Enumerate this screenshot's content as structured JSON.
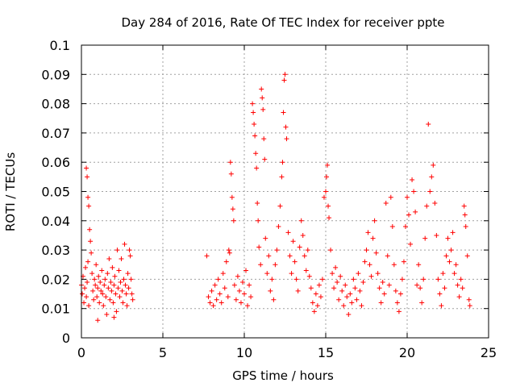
{
  "chart_data": {
    "type": "scatter",
    "title": "Day 284 of 2016, Rate Of TEC Index for receiver ppte",
    "xlabel": "GPS time / hours",
    "ylabel": "ROTI / TECUs",
    "xlim": [
      0,
      25
    ],
    "ylim": [
      0,
      0.1
    ],
    "xticks": [
      0,
      5,
      10,
      15,
      20,
      25
    ],
    "xtick_labels": [
      "0",
      "5",
      "10",
      "15",
      "20",
      "25"
    ],
    "yticks": [
      0,
      0.01,
      0.02,
      0.03,
      0.04,
      0.05,
      0.06,
      0.07,
      0.08,
      0.09,
      0.1
    ],
    "ytick_labels": [
      "0",
      "0.01",
      "0.02",
      "0.03",
      "0.04",
      "0.05",
      "0.06",
      "0.07",
      "0.08",
      "0.09",
      "0.1"
    ],
    "grid": true,
    "marker": "+",
    "color": "#ff0000",
    "series": [
      {
        "name": "ROTI",
        "points": [
          [
            0.0,
            0.018
          ],
          [
            0.05,
            0.015
          ],
          [
            0.1,
            0.021
          ],
          [
            0.15,
            0.012
          ],
          [
            0.2,
            0.017
          ],
          [
            0.25,
            0.024
          ],
          [
            0.3,
            0.014
          ],
          [
            0.35,
            0.019
          ],
          [
            0.4,
            0.026
          ],
          [
            0.45,
            0.011
          ],
          [
            0.3,
            0.058
          ],
          [
            0.35,
            0.055
          ],
          [
            0.4,
            0.048
          ],
          [
            0.45,
            0.045
          ],
          [
            0.5,
            0.037
          ],
          [
            0.55,
            0.033
          ],
          [
            0.6,
            0.029
          ],
          [
            0.65,
            0.022
          ],
          [
            0.7,
            0.016
          ],
          [
            0.75,
            0.013
          ],
          [
            0.8,
            0.02
          ],
          [
            0.85,
            0.018
          ],
          [
            0.9,
            0.025
          ],
          [
            0.95,
            0.014
          ],
          [
            1.0,
            0.017
          ],
          [
            1.05,
            0.021
          ],
          [
            1.1,
            0.012
          ],
          [
            1.15,
            0.019
          ],
          [
            1.2,
            0.016
          ],
          [
            1.25,
            0.023
          ],
          [
            1.3,
            0.015
          ],
          [
            1.35,
            0.011
          ],
          [
            1.4,
            0.018
          ],
          [
            1.45,
            0.02
          ],
          [
            1.5,
            0.014
          ],
          [
            1.55,
            0.008
          ],
          [
            1.6,
            0.022
          ],
          [
            1.65,
            0.017
          ],
          [
            1.7,
            0.027
          ],
          [
            1.75,
            0.013
          ],
          [
            1.8,
            0.019
          ],
          [
            1.85,
            0.016
          ],
          [
            1.9,
            0.024
          ],
          [
            1.95,
            0.012
          ],
          [
            2.0,
            0.018
          ],
          [
            2.05,
            0.021
          ],
          [
            2.1,
            0.015
          ],
          [
            2.15,
            0.009
          ],
          [
            2.2,
            0.03
          ],
          [
            2.25,
            0.017
          ],
          [
            2.3,
            0.023
          ],
          [
            2.35,
            0.014
          ],
          [
            2.4,
            0.019
          ],
          [
            2.45,
            0.027
          ],
          [
            2.5,
            0.016
          ],
          [
            2.55,
            0.012
          ],
          [
            2.6,
            0.02
          ],
          [
            2.65,
            0.032
          ],
          [
            2.7,
            0.018
          ],
          [
            2.75,
            0.015
          ],
          [
            2.8,
            0.011
          ],
          [
            2.85,
            0.022
          ],
          [
            2.9,
            0.017
          ],
          [
            2.95,
            0.03
          ],
          [
            3.0,
            0.028
          ],
          [
            3.05,
            0.02
          ],
          [
            3.1,
            0.015
          ],
          [
            3.15,
            0.013
          ],
          [
            1.0,
            0.006
          ],
          [
            2.0,
            0.007
          ],
          [
            7.7,
            0.028
          ],
          [
            7.8,
            0.014
          ],
          [
            7.9,
            0.012
          ],
          [
            8.0,
            0.016
          ],
          [
            8.1,
            0.011
          ],
          [
            8.2,
            0.018
          ],
          [
            8.3,
            0.013
          ],
          [
            8.4,
            0.02
          ],
          [
            8.5,
            0.015
          ],
          [
            8.6,
            0.012
          ],
          [
            8.7,
            0.022
          ],
          [
            8.8,
            0.017
          ],
          [
            8.9,
            0.026
          ],
          [
            9.0,
            0.014
          ],
          [
            9.05,
            0.03
          ],
          [
            9.1,
            0.029
          ],
          [
            9.15,
            0.06
          ],
          [
            9.2,
            0.056
          ],
          [
            9.25,
            0.048
          ],
          [
            9.3,
            0.044
          ],
          [
            9.35,
            0.04
          ],
          [
            9.4,
            0.018
          ],
          [
            9.5,
            0.013
          ],
          [
            9.6,
            0.021
          ],
          [
            9.7,
            0.016
          ],
          [
            9.8,
            0.012
          ],
          [
            9.9,
            0.019
          ],
          [
            10.0,
            0.015
          ],
          [
            10.1,
            0.023
          ],
          [
            10.2,
            0.011
          ],
          [
            10.3,
            0.018
          ],
          [
            10.4,
            0.014
          ],
          [
            10.5,
            0.08
          ],
          [
            10.55,
            0.077
          ],
          [
            10.6,
            0.073
          ],
          [
            10.65,
            0.069
          ],
          [
            10.7,
            0.063
          ],
          [
            10.75,
            0.058
          ],
          [
            10.8,
            0.046
          ],
          [
            10.85,
            0.04
          ],
          [
            10.9,
            0.031
          ],
          [
            11.0,
            0.025
          ],
          [
            11.05,
            0.085
          ],
          [
            11.1,
            0.082
          ],
          [
            11.15,
            0.078
          ],
          [
            11.2,
            0.068
          ],
          [
            11.25,
            0.061
          ],
          [
            11.3,
            0.034
          ],
          [
            11.4,
            0.022
          ],
          [
            11.5,
            0.028
          ],
          [
            11.6,
            0.016
          ],
          [
            11.7,
            0.02
          ],
          [
            11.8,
            0.013
          ],
          [
            11.9,
            0.025
          ],
          [
            12.0,
            0.03
          ],
          [
            12.1,
            0.038
          ],
          [
            12.2,
            0.045
          ],
          [
            12.3,
            0.055
          ],
          [
            12.35,
            0.06
          ],
          [
            12.4,
            0.077
          ],
          [
            12.45,
            0.088
          ],
          [
            12.5,
            0.09
          ],
          [
            12.55,
            0.072
          ],
          [
            12.6,
            0.068
          ],
          [
            12.7,
            0.036
          ],
          [
            12.8,
            0.028
          ],
          [
            12.9,
            0.022
          ],
          [
            13.0,
            0.033
          ],
          [
            13.1,
            0.026
          ],
          [
            13.2,
            0.02
          ],
          [
            13.3,
            0.016
          ],
          [
            13.4,
            0.031
          ],
          [
            13.5,
            0.04
          ],
          [
            13.6,
            0.035
          ],
          [
            13.7,
            0.028
          ],
          [
            13.8,
            0.023
          ],
          [
            13.9,
            0.03
          ],
          [
            14.0,
            0.021
          ],
          [
            14.1,
            0.017
          ],
          [
            14.2,
            0.012
          ],
          [
            14.3,
            0.009
          ],
          [
            14.4,
            0.015
          ],
          [
            14.5,
            0.011
          ],
          [
            14.6,
            0.018
          ],
          [
            14.7,
            0.014
          ],
          [
            14.8,
            0.02
          ],
          [
            14.9,
            0.048
          ],
          [
            15.0,
            0.05
          ],
          [
            15.05,
            0.055
          ],
          [
            15.1,
            0.059
          ],
          [
            15.15,
            0.045
          ],
          [
            15.2,
            0.041
          ],
          [
            15.3,
            0.03
          ],
          [
            15.4,
            0.022
          ],
          [
            15.5,
            0.017
          ],
          [
            15.6,
            0.024
          ],
          [
            15.7,
            0.019
          ],
          [
            15.8,
            0.013
          ],
          [
            15.9,
            0.021
          ],
          [
            16.0,
            0.016
          ],
          [
            16.1,
            0.011
          ],
          [
            16.2,
            0.018
          ],
          [
            16.3,
            0.014
          ],
          [
            16.4,
            0.008
          ],
          [
            16.5,
            0.015
          ],
          [
            16.6,
            0.012
          ],
          [
            16.7,
            0.02
          ],
          [
            16.8,
            0.017
          ],
          [
            16.9,
            0.013
          ],
          [
            17.0,
            0.022
          ],
          [
            17.1,
            0.016
          ],
          [
            17.2,
            0.011
          ],
          [
            17.3,
            0.019
          ],
          [
            17.4,
            0.026
          ],
          [
            17.5,
            0.03
          ],
          [
            17.6,
            0.036
          ],
          [
            17.7,
            0.025
          ],
          [
            17.8,
            0.021
          ],
          [
            17.9,
            0.034
          ],
          [
            18.0,
            0.04
          ],
          [
            18.1,
            0.029
          ],
          [
            18.2,
            0.022
          ],
          [
            18.3,
            0.017
          ],
          [
            18.4,
            0.012
          ],
          [
            18.5,
            0.019
          ],
          [
            18.6,
            0.015
          ],
          [
            18.7,
            0.046
          ],
          [
            18.8,
            0.028
          ],
          [
            18.9,
            0.018
          ],
          [
            19.0,
            0.048
          ],
          [
            19.1,
            0.038
          ],
          [
            19.2,
            0.025
          ],
          [
            19.3,
            0.016
          ],
          [
            19.4,
            0.012
          ],
          [
            19.5,
            0.009
          ],
          [
            19.6,
            0.015
          ],
          [
            19.7,
            0.02
          ],
          [
            19.8,
            0.026
          ],
          [
            19.9,
            0.038
          ],
          [
            20.0,
            0.048
          ],
          [
            20.1,
            0.042
          ],
          [
            20.2,
            0.032
          ],
          [
            20.3,
            0.054
          ],
          [
            20.4,
            0.05
          ],
          [
            20.5,
            0.043
          ],
          [
            20.6,
            0.018
          ],
          [
            20.7,
            0.025
          ],
          [
            20.8,
            0.017
          ],
          [
            20.9,
            0.012
          ],
          [
            21.0,
            0.02
          ],
          [
            21.1,
            0.034
          ],
          [
            21.2,
            0.045
          ],
          [
            21.3,
            0.073
          ],
          [
            21.4,
            0.05
          ],
          [
            21.5,
            0.055
          ],
          [
            21.6,
            0.059
          ],
          [
            21.7,
            0.046
          ],
          [
            21.8,
            0.035
          ],
          [
            21.9,
            0.02
          ],
          [
            22.0,
            0.015
          ],
          [
            22.1,
            0.011
          ],
          [
            22.2,
            0.022
          ],
          [
            22.3,
            0.017
          ],
          [
            22.4,
            0.028
          ],
          [
            22.5,
            0.034
          ],
          [
            22.6,
            0.026
          ],
          [
            22.7,
            0.03
          ],
          [
            22.8,
            0.036
          ],
          [
            22.9,
            0.022
          ],
          [
            23.0,
            0.025
          ],
          [
            23.1,
            0.018
          ],
          [
            23.2,
            0.014
          ],
          [
            23.3,
            0.02
          ],
          [
            23.4,
            0.017
          ],
          [
            23.5,
            0.045
          ],
          [
            23.55,
            0.042
          ],
          [
            23.6,
            0.038
          ],
          [
            23.7,
            0.028
          ],
          [
            23.8,
            0.013
          ],
          [
            23.85,
            0.011
          ]
        ]
      }
    ]
  }
}
